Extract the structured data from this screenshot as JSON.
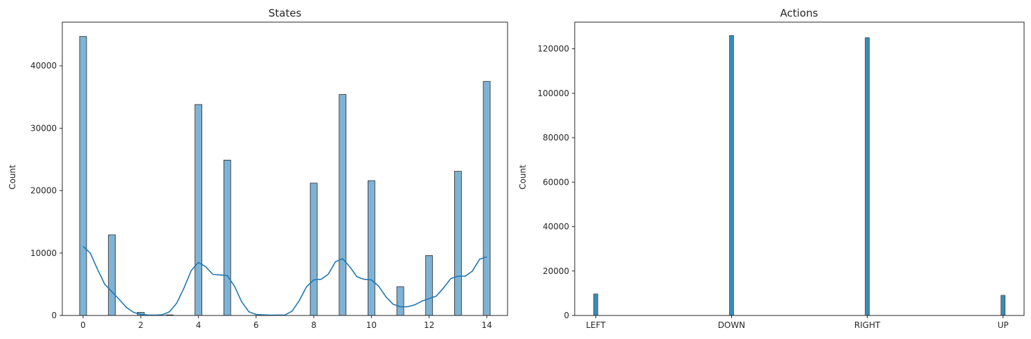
{
  "chart_data": [
    {
      "type": "bar",
      "title": "States",
      "xlabel": "",
      "ylabel": "Count",
      "x": [
        0,
        1,
        2,
        3,
        4,
        5,
        6,
        7,
        8,
        9,
        10,
        11,
        12,
        13,
        14
      ],
      "values": [
        44700,
        12900,
        500,
        100,
        33800,
        24900,
        0,
        0,
        21200,
        35400,
        21600,
        4600,
        9600,
        23100,
        37500
      ],
      "kde": [
        [
          0,
          11100
        ],
        [
          0.25,
          10000
        ],
        [
          0.5,
          7400
        ],
        [
          0.75,
          5000
        ],
        [
          1,
          3800
        ],
        [
          1.25,
          2600
        ],
        [
          1.5,
          1300
        ],
        [
          1.75,
          500
        ],
        [
          2,
          180
        ],
        [
          2.25,
          80
        ],
        [
          2.5,
          50
        ],
        [
          2.75,
          120
        ],
        [
          3,
          600
        ],
        [
          3.25,
          2000
        ],
        [
          3.5,
          4400
        ],
        [
          3.75,
          7200
        ],
        [
          4,
          8500
        ],
        [
          4.25,
          7800
        ],
        [
          4.5,
          6600
        ],
        [
          4.75,
          6500
        ],
        [
          5,
          6400
        ],
        [
          5.25,
          4700
        ],
        [
          5.5,
          2200
        ],
        [
          5.75,
          600
        ],
        [
          6,
          150
        ],
        [
          6.5,
          40
        ],
        [
          7,
          80
        ],
        [
          7.25,
          700
        ],
        [
          7.5,
          2400
        ],
        [
          7.75,
          4600
        ],
        [
          8,
          5700
        ],
        [
          8.25,
          5800
        ],
        [
          8.5,
          6600
        ],
        [
          8.75,
          8600
        ],
        [
          9,
          9100
        ],
        [
          9.25,
          7800
        ],
        [
          9.5,
          6200
        ],
        [
          9.75,
          5800
        ],
        [
          10,
          5700
        ],
        [
          10.25,
          4700
        ],
        [
          10.5,
          3000
        ],
        [
          10.75,
          1800
        ],
        [
          11,
          1400
        ],
        [
          11.25,
          1400
        ],
        [
          11.5,
          1700
        ],
        [
          11.75,
          2300
        ],
        [
          12,
          2700
        ],
        [
          12.25,
          3100
        ],
        [
          12.5,
          4400
        ],
        [
          12.75,
          5900
        ],
        [
          13,
          6300
        ],
        [
          13.25,
          6300
        ],
        [
          13.5,
          7100
        ],
        [
          13.75,
          9000
        ],
        [
          14,
          9400
        ]
      ],
      "xlim": [
        -0.72,
        14.72
      ],
      "ylim": [
        0,
        47000
      ],
      "xticks": [
        0,
        2,
        4,
        6,
        8,
        10,
        12,
        14
      ],
      "yticks": [
        0,
        10000,
        20000,
        30000,
        40000
      ],
      "bar_color": "#7fb3d5",
      "line_color": "#1f77b4",
      "grid": false
    },
    {
      "type": "bar",
      "title": "Actions",
      "xlabel": "",
      "ylabel": "Count",
      "categories": [
        "LEFT",
        "DOWN",
        "RIGHT",
        "UP"
      ],
      "values": [
        9700,
        126000,
        125000,
        9100
      ],
      "ylim": [
        0,
        132000
      ],
      "yticks": [
        0,
        20000,
        40000,
        60000,
        80000,
        100000,
        120000
      ],
      "bar_color": "#3b8bb9",
      "grid": false
    }
  ]
}
